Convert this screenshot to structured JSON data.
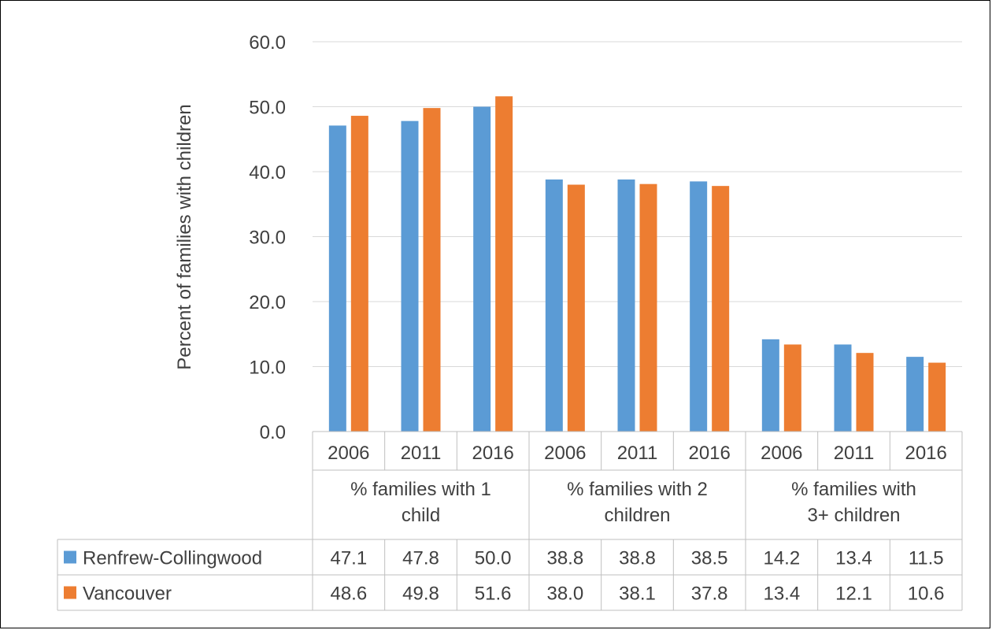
{
  "chart_data": {
    "type": "bar",
    "ylabel": "Percent of families with children",
    "xlabel": "",
    "ylim": [
      0,
      60
    ],
    "yticks": [
      "0.0",
      "10.0",
      "20.0",
      "30.0",
      "40.0",
      "50.0",
      "60.0"
    ],
    "grid": true,
    "legend": "table-left",
    "groups": [
      {
        "label": [
          "% families with 1",
          "child"
        ],
        "years": [
          "2006",
          "2011",
          "2016"
        ]
      },
      {
        "label": [
          "% families with 2",
          "children"
        ],
        "years": [
          "2006",
          "2011",
          "2016"
        ]
      },
      {
        "label": [
          "% families with",
          "3+ children"
        ],
        "years": [
          "2006",
          "2011",
          "2016"
        ]
      }
    ],
    "series": [
      {
        "name": "Renfrew-Collingwood",
        "color": "#5b9bd5",
        "values": [
          47.1,
          47.8,
          50.0,
          38.8,
          38.8,
          38.5,
          14.2,
          13.4,
          11.5
        ],
        "labels": [
          "47.1",
          "47.8",
          "50.0",
          "38.8",
          "38.8",
          "38.5",
          "14.2",
          "13.4",
          "11.5"
        ]
      },
      {
        "name": "Vancouver",
        "color": "#ed7d31",
        "values": [
          48.6,
          49.8,
          51.6,
          38.0,
          38.1,
          37.8,
          13.4,
          12.1,
          10.6
        ],
        "labels": [
          "48.6",
          "49.8",
          "51.6",
          "38.0",
          "38.1",
          "37.8",
          "13.4",
          "12.1",
          "10.6"
        ]
      }
    ]
  }
}
